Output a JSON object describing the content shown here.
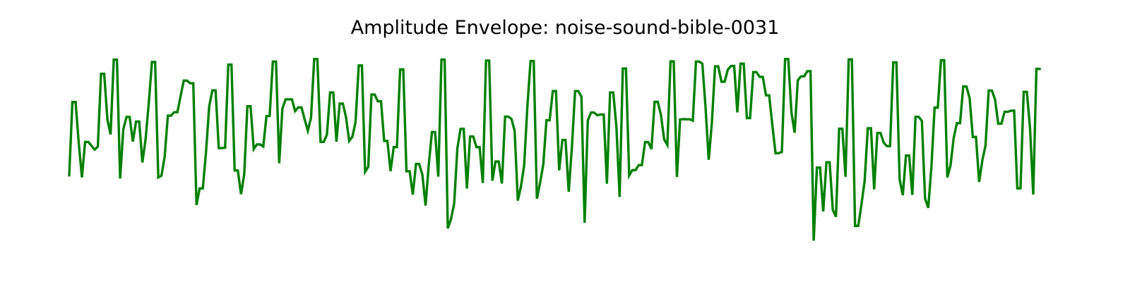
{
  "chart_data": {
    "type": "line",
    "title": "Amplitude Envelope: noise-sound-bible-0031",
    "xlabel": "",
    "ylabel": "",
    "axes_visible": false,
    "grid": false,
    "line_color": "#008000",
    "xlim": [
      0,
      249
    ],
    "ylim": [
      0,
      1
    ],
    "series": [
      {
        "values": [
          0.38,
          0.762,
          0.762,
          0.548,
          0.369,
          0.554,
          0.554,
          0.534,
          0.514,
          0.53,
          0.909,
          0.909,
          0.671,
          0.593,
          0.983,
          0.983,
          0.363,
          0.619,
          0.684,
          0.684,
          0.556,
          0.66,
          0.66,
          0.447,
          0.568,
          0.754,
          0.971,
          0.971,
          0.369,
          0.378,
          0.477,
          0.691,
          0.691,
          0.709,
          0.709,
          0.792,
          0.874,
          0.874,
          0.86,
          0.86,
          0.225,
          0.312,
          0.312,
          0.502,
          0.74,
          0.823,
          0.823,
          0.522,
          0.522,
          0.524,
          0.957,
          0.957,
          0.405,
          0.405,
          0.282,
          0.384,
          0.74,
          0.74,
          0.517,
          0.541,
          0.541,
          0.53,
          0.689,
          0.689,
          0.973,
          0.973,
          0.443,
          0.727,
          0.776,
          0.776,
          0.776,
          0.715,
          0.734,
          0.734,
          0.672,
          0.612,
          0.68,
          0.986,
          0.986,
          0.554,
          0.554,
          0.592,
          0.812,
          0.812,
          0.555,
          0.754,
          0.754,
          0.683,
          0.559,
          0.581,
          0.658,
          0.953,
          0.953,
          0.398,
          0.425,
          0.801,
          0.801,
          0.766,
          0.766,
          0.559,
          0.559,
          0.402,
          0.527,
          0.527,
          0.932,
          0.932,
          0.401,
          0.401,
          0.279,
          0.439,
          0.439,
          0.383,
          0.222,
          0.433,
          0.605,
          0.605,
          0.373,
          0.983,
          0.983,
          0.103,
          0.152,
          0.233,
          0.52,
          0.622,
          0.622,
          0.311,
          0.582,
          0.582,
          0.527,
          0.527,
          0.34,
          0.978,
          0.978,
          0.352,
          0.452,
          0.452,
          0.337,
          0.686,
          0.686,
          0.674,
          0.612,
          0.248,
          0.323,
          0.433,
          0.738,
          0.976,
          0.976,
          0.258,
          0.341,
          0.436,
          0.667,
          0.667,
          0.819,
          0.819,
          0.406,
          0.564,
          0.564,
          0.294,
          0.527,
          0.819,
          0.819,
          0.79,
          0.132,
          0.665,
          0.707,
          0.707,
          0.693,
          0.697,
          0.697,
          0.336,
          0.812,
          0.812,
          0.63,
          0.267,
          0.937,
          0.937,
          0.379,
          0.407,
          0.407,
          0.433,
          0.433,
          0.553,
          0.553,
          0.517,
          0.763,
          0.763,
          0.693,
          0.567,
          0.538,
          0.974,
          0.974,
          0.371,
          0.671,
          0.673,
          0.672,
          0.672,
          0.665,
          0.973,
          0.973,
          0.962,
          0.736,
          0.461,
          0.656,
          0.948,
          0.948,
          0.868,
          0.868,
          0.931,
          0.95,
          0.95,
          0.708,
          0.962,
          0.962,
          0.678,
          0.678,
          0.918,
          0.918,
          0.893,
          0.893,
          0.797,
          0.797,
          0.642,
          0.495,
          0.495,
          0.502,
          0.986,
          0.986,
          0.708,
          0.602,
          0.875,
          0.896,
          0.896,
          0.923,
          0.923,
          0.039,
          0.42,
          0.42,
          0.191,
          0.448,
          0.448,
          0.2,
          0.164,
          0.623,
          0.623,
          0.372,
          0.984,
          0.984,
          0.116,
          0.116,
          0.227,
          0.349,
          0.625,
          0.625,
          0.307,
          0.601,
          0.601,
          0.55,
          0.532,
          0.532,
          0.969,
          0.969,
          0.36,
          0.276,
          0.483,
          0.483,
          0.278,
          0.685,
          0.685,
          0.663,
          0.259,
          0.21,
          0.425,
          0.733,
          0.733,
          0.98,
          0.98,
          0.369,
          0.432,
          0.575,
          0.652,
          0.652,
          0.843,
          0.843,
          0.783,
          0.58,
          0.58,
          0.345,
          0.457,
          0.535,
          0.822,
          0.822,
          0.775,
          0.649,
          0.649,
          0.711,
          0.711,
          0.717,
          0.717,
          0.312,
          0.312,
          0.815,
          0.815,
          0.624,
          0.28,
          0.935,
          0.935
        ]
      }
    ]
  }
}
